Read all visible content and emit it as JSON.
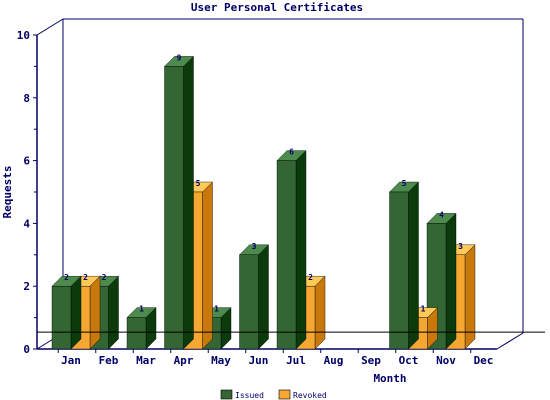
{
  "chart_data": {
    "type": "bar",
    "title": "User Personal Certificates",
    "xlabel": "Month",
    "ylabel": "Requests",
    "categories": [
      "Jan",
      "Feb",
      "Mar",
      "Apr",
      "May",
      "Jun",
      "Jul",
      "Aug",
      "Sep",
      "Oct",
      "Nov",
      "Dec"
    ],
    "series": [
      {
        "name": "Issued",
        "values": [
          2,
          2,
          1,
          9,
          1,
          3,
          6,
          0,
          0,
          5,
          4,
          0
        ]
      },
      {
        "name": "Revoked",
        "values": [
          2,
          0,
          0,
          5,
          0,
          0,
          2,
          0,
          0,
          1,
          3,
          0
        ]
      }
    ],
    "ylim": [
      0,
      10
    ],
    "yticks": [
      "0",
      "2",
      "4",
      "6",
      "8",
      "10"
    ],
    "grid": false,
    "legend_position": "bottom-center",
    "colors": {
      "issued_front": "#336633",
      "issued_top": "#4d8a4d",
      "issued_side": "#0b3b0b",
      "revoked_front": "#f5a731",
      "revoked_top": "#ffc95a",
      "revoked_side": "#c9780c",
      "axis": "#000066",
      "label": "#000066",
      "reference_line": "#000000"
    },
    "reference_line_value": 0.6,
    "data_labels": [
      {
        "month": "Jan",
        "series": "Issued",
        "text": "2"
      },
      {
        "month": "Jan",
        "series": "Revoked",
        "text": "2"
      },
      {
        "month": "Feb",
        "series": "Issued",
        "text": "2"
      },
      {
        "month": "Mar",
        "series": "Issued",
        "text": "1"
      },
      {
        "month": "Apr",
        "series": "Issued",
        "text": "9"
      },
      {
        "month": "Apr",
        "series": "Revoked",
        "text": "5"
      },
      {
        "month": "May",
        "series": "Issued",
        "text": "1"
      },
      {
        "month": "Jun",
        "series": "Issued",
        "text": "3"
      },
      {
        "month": "Jul",
        "series": "Issued",
        "text": "6"
      },
      {
        "month": "Jul",
        "series": "Revoked",
        "text": "2"
      },
      {
        "month": "Oct",
        "series": "Issued",
        "text": "5"
      },
      {
        "month": "Oct",
        "series": "Revoked",
        "text": "1"
      },
      {
        "month": "Nov",
        "series": "Issued",
        "text": "4"
      },
      {
        "month": "Nov",
        "series": "Revoked",
        "text": "3"
      }
    ]
  }
}
